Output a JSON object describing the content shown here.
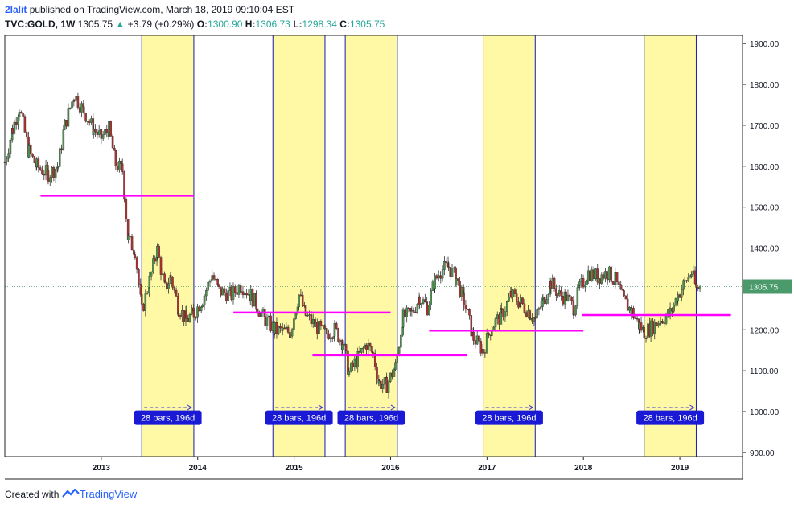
{
  "header": {
    "user": "2lalit",
    "published": "published on TradingView.com, March 18, 2019 09:10:04 EST",
    "symbol": "TVC:GOLD, 1W",
    "last": "1305.75",
    "change": "+3.79 (+0.29%)",
    "o_label": "O:",
    "o_value": "1300.90",
    "h_label": "H:",
    "h_value": "1306.73",
    "l_label": "L:",
    "l_value": "1298.34",
    "c_label": "C:",
    "c_value": "1305.75"
  },
  "footer": {
    "created_with": "Created with",
    "brand": "TradingView"
  },
  "colors": {
    "zone": "#fff9a6",
    "zone_line": "#1a1aa8",
    "hline": "#ff00ff",
    "up": "#4e8f4e",
    "down": "#a93232",
    "price_tag": "#4b9a6b",
    "label_bg": "#1a1ad6"
  },
  "chart_data": {
    "type": "candlestick",
    "y_axis": {
      "ticks": [
        "1900.00",
        "1800.00",
        "1700.00",
        "1600.00",
        "1500.00",
        "1400.00",
        "1300.00",
        "1200.00",
        "1100.00",
        "1000.00",
        "900.00"
      ],
      "range": [
        890,
        1920
      ]
    },
    "x_axis": {
      "ticks": [
        "2013",
        "2014",
        "2015",
        "2016",
        "2017",
        "2018",
        "2019"
      ],
      "range_years": [
        2012.0,
        2019.65
      ]
    },
    "last_price_label": "1305.75",
    "time_zones": [
      {
        "start": 2013.42,
        "end": 2013.96,
        "label": "28 bars, 196d"
      },
      {
        "start": 2014.78,
        "end": 2015.32,
        "label": "28 bars, 196d"
      },
      {
        "start": 2015.53,
        "end": 2016.07,
        "label": "28 bars, 196d"
      },
      {
        "start": 2016.96,
        "end": 2017.5,
        "label": "28 bars, 196d"
      },
      {
        "start": 2018.63,
        "end": 2019.17,
        "label": "28 bars, 196d"
      }
    ],
    "horizontal_levels": [
      {
        "x1": 2012.37,
        "x2": 2013.96,
        "price": 1528
      },
      {
        "x1": 2014.37,
        "x2": 2016.0,
        "price": 1242
      },
      {
        "x1": 2015.19,
        "x2": 2016.79,
        "price": 1138
      },
      {
        "x1": 2016.4,
        "x2": 2018.0,
        "price": 1198
      },
      {
        "x1": 2017.99,
        "x2": 2019.53,
        "price": 1236
      }
    ],
    "price_path": [
      [
        2012.0,
        1610
      ],
      [
        2012.08,
        1690
      ],
      [
        2012.15,
        1745
      ],
      [
        2012.25,
        1635
      ],
      [
        2012.33,
        1600
      ],
      [
        2012.45,
        1580
      ],
      [
        2012.55,
        1600
      ],
      [
        2012.62,
        1700
      ],
      [
        2012.72,
        1775
      ],
      [
        2012.82,
        1735
      ],
      [
        2012.92,
        1690
      ],
      [
        2013.0,
        1670
      ],
      [
        2013.08,
        1690
      ],
      [
        2013.15,
        1605
      ],
      [
        2013.22,
        1590
      ],
      [
        2013.28,
        1420
      ],
      [
        2013.35,
        1395
      ],
      [
        2013.42,
        1245
      ],
      [
        2013.5,
        1320
      ],
      [
        2013.58,
        1395
      ],
      [
        2013.66,
        1300
      ],
      [
        2013.72,
        1330
      ],
      [
        2013.8,
        1255
      ],
      [
        2013.88,
        1225
      ],
      [
        2013.96,
        1240
      ],
      [
        2014.05,
        1275
      ],
      [
        2014.15,
        1335
      ],
      [
        2014.22,
        1295
      ],
      [
        2014.35,
        1285
      ],
      [
        2014.45,
        1310
      ],
      [
        2014.55,
        1285
      ],
      [
        2014.62,
        1255
      ],
      [
        2014.7,
        1225
      ],
      [
        2014.8,
        1200
      ],
      [
        2014.88,
        1195
      ],
      [
        2014.96,
        1195
      ],
      [
        2015.05,
        1285
      ],
      [
        2015.12,
        1235
      ],
      [
        2015.22,
        1210
      ],
      [
        2015.32,
        1190
      ],
      [
        2015.42,
        1200
      ],
      [
        2015.5,
        1170
      ],
      [
        2015.57,
        1095
      ],
      [
        2015.66,
        1130
      ],
      [
        2015.75,
        1165
      ],
      [
        2015.82,
        1140
      ],
      [
        2015.88,
        1070
      ],
      [
        2015.96,
        1065
      ],
      [
        2016.05,
        1110
      ],
      [
        2016.13,
        1230
      ],
      [
        2016.22,
        1240
      ],
      [
        2016.3,
        1280
      ],
      [
        2016.38,
        1255
      ],
      [
        2016.46,
        1320
      ],
      [
        2016.52,
        1345
      ],
      [
        2016.6,
        1355
      ],
      [
        2016.68,
        1325
      ],
      [
        2016.76,
        1270
      ],
      [
        2016.86,
        1180
      ],
      [
        2016.96,
        1150
      ],
      [
        2017.05,
        1210
      ],
      [
        2017.15,
        1235
      ],
      [
        2017.25,
        1285
      ],
      [
        2017.35,
        1265
      ],
      [
        2017.45,
        1240
      ],
      [
        2017.5,
        1225
      ],
      [
        2017.58,
        1270
      ],
      [
        2017.66,
        1315
      ],
      [
        2017.75,
        1285
      ],
      [
        2017.82,
        1280
      ],
      [
        2017.9,
        1255
      ],
      [
        2017.96,
        1300
      ],
      [
        2018.05,
        1340
      ],
      [
        2018.15,
        1330
      ],
      [
        2018.25,
        1340
      ],
      [
        2018.33,
        1320
      ],
      [
        2018.42,
        1270
      ],
      [
        2018.5,
        1245
      ],
      [
        2018.58,
        1210
      ],
      [
        2018.63,
        1195
      ],
      [
        2018.7,
        1205
      ],
      [
        2018.8,
        1225
      ],
      [
        2018.9,
        1240
      ],
      [
        2018.98,
        1285
      ],
      [
        2019.05,
        1315
      ],
      [
        2019.12,
        1340
      ],
      [
        2019.17,
        1300
      ],
      [
        2019.22,
        1305.75
      ]
    ]
  }
}
